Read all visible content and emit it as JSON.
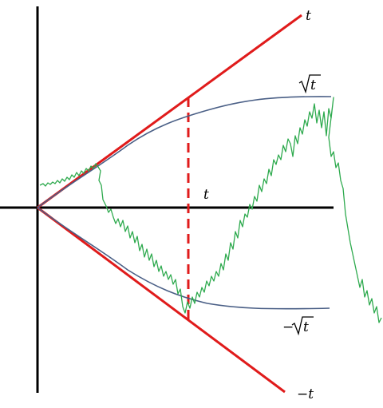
{
  "labels": {
    "t_line": "t",
    "neg_t_line": "−t",
    "sqrt_t": "t",
    "neg_sqrt_t": "t",
    "neg_sign": "−",
    "time_axis": "t"
  },
  "colors": {
    "axes": "#000000",
    "bound_lines": "#e01b1b",
    "sqrt_curves": "#4a5f86",
    "random_walk": "#2eaa4e",
    "marker": "#e01b1b"
  }
}
